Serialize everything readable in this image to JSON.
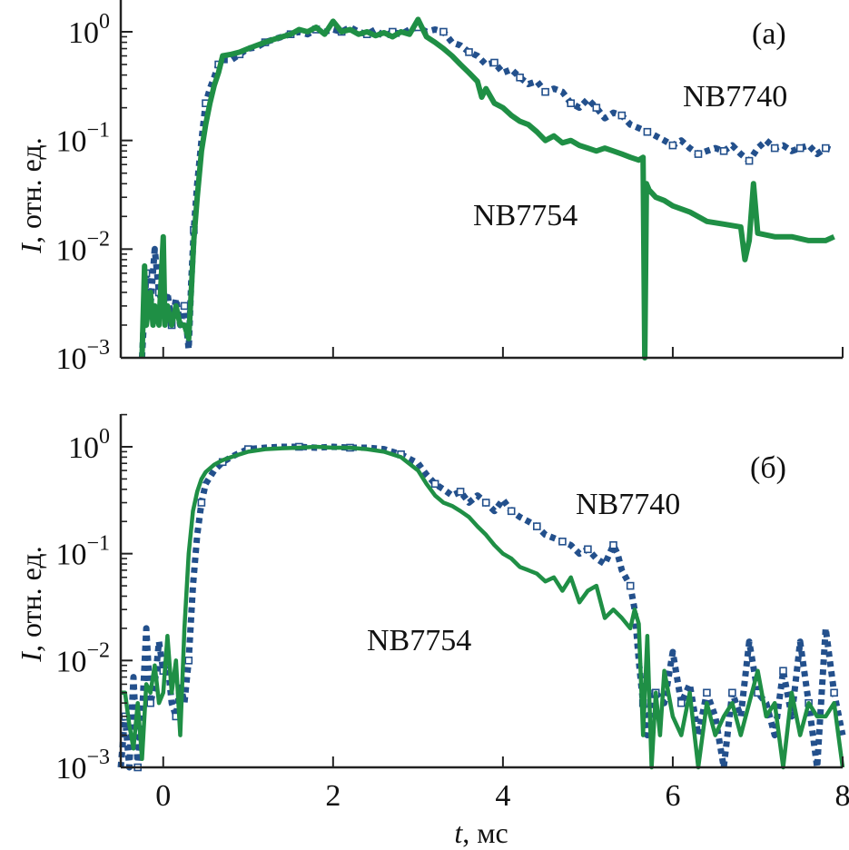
{
  "chart_data": [
    {
      "type": "line",
      "panel_label": "(a)",
      "title": "",
      "xlabel_italic": "t",
      "xlabel_rest": ", мс",
      "ylabel_italic": "I",
      "ylabel_rest": ", отн. ед.",
      "yscale": "log",
      "xlim": [
        -0.5,
        8
      ],
      "ylim": [
        0.001,
        2
      ],
      "x_ticks": [
        0,
        2,
        4,
        6,
        8
      ],
      "x_tick_labels_shown": false,
      "y_ticks": [
        {
          "value": 1,
          "base": "10",
          "exp": "0"
        },
        {
          "value": 0.1,
          "base": "10",
          "exp": "−1"
        },
        {
          "value": 0.01,
          "base": "10",
          "exp": "−2"
        },
        {
          "value": 0.001,
          "base": "10",
          "exp": "−3"
        }
      ],
      "grid": false,
      "series": [
        {
          "name": "NB7740",
          "style": "dotted-squares",
          "color": "#23508c",
          "label_position": "upper-right",
          "x": [
            -0.25,
            -0.2,
            -0.15,
            -0.1,
            -0.05,
            0,
            0.05,
            0.1,
            0.15,
            0.2,
            0.25,
            0.3,
            0.33,
            0.36,
            0.4,
            0.45,
            0.5,
            0.55,
            0.6,
            0.65,
            0.7,
            0.8,
            0.9,
            1.0,
            1.1,
            1.2,
            1.3,
            1.4,
            1.5,
            1.6,
            1.7,
            1.8,
            1.9,
            2.0,
            2.1,
            2.2,
            2.3,
            2.4,
            2.5,
            2.6,
            2.7,
            2.8,
            2.9,
            3.0,
            3.1,
            3.2,
            3.3,
            3.4,
            3.5,
            3.6,
            3.7,
            3.8,
            3.9,
            4.0,
            4.1,
            4.2,
            4.3,
            4.4,
            4.5,
            4.6,
            4.7,
            4.8,
            4.9,
            5.0,
            5.1,
            5.2,
            5.3,
            5.4,
            5.5,
            5.6,
            5.7,
            5.8,
            5.9,
            6.0,
            6.1,
            6.2,
            6.3,
            6.4,
            6.5,
            6.6,
            6.7,
            6.8,
            6.9,
            7.0,
            7.1,
            7.2,
            7.3,
            7.4,
            7.5,
            7.6,
            7.7,
            7.8,
            7.9
          ],
          "y": [
            0.001,
            0.006,
            0.003,
            0.01,
            0.004,
            0.003,
            0.004,
            0.002,
            0.0035,
            0.002,
            0.003,
            0.0012,
            0.005,
            0.015,
            0.04,
            0.1,
            0.22,
            0.3,
            0.38,
            0.5,
            0.55,
            0.55,
            0.62,
            0.7,
            0.72,
            0.8,
            0.85,
            0.9,
            0.95,
            1.0,
            0.95,
            1.05,
            1.0,
            1.05,
            1.0,
            1.1,
            1.0,
            0.95,
            1.05,
            0.9,
            1.0,
            0.95,
            1.05,
            1.1,
            1.0,
            1.05,
            1.0,
            0.8,
            0.75,
            0.65,
            0.6,
            0.5,
            0.52,
            0.42,
            0.45,
            0.38,
            0.33,
            0.35,
            0.28,
            0.3,
            0.28,
            0.22,
            0.2,
            0.24,
            0.2,
            0.16,
            0.18,
            0.17,
            0.14,
            0.13,
            0.12,
            0.11,
            0.1,
            0.09,
            0.1,
            0.085,
            0.075,
            0.08,
            0.085,
            0.08,
            0.09,
            0.075,
            0.065,
            0.085,
            0.1,
            0.085,
            0.09,
            0.08,
            0.085,
            0.09,
            0.075,
            0.085,
            0.08
          ]
        },
        {
          "name": "NB7754",
          "style": "solid",
          "color": "#1f8f45",
          "label_position": "center-right",
          "x": [
            -0.25,
            -0.22,
            -0.2,
            -0.15,
            -0.12,
            -0.1,
            -0.05,
            0,
            0.02,
            0.05,
            0.1,
            0.15,
            0.2,
            0.25,
            0.3,
            0.33,
            0.36,
            0.4,
            0.45,
            0.5,
            0.55,
            0.6,
            0.65,
            0.7,
            0.8,
            0.9,
            1.0,
            1.1,
            1.2,
            1.3,
            1.4,
            1.5,
            1.6,
            1.7,
            1.8,
            1.9,
            2.0,
            2.1,
            2.2,
            2.3,
            2.4,
            2.5,
            2.6,
            2.7,
            2.8,
            2.9,
            3.0,
            3.1,
            3.2,
            3.3,
            3.4,
            3.5,
            3.6,
            3.7,
            3.75,
            3.8,
            3.9,
            4.0,
            4.1,
            4.2,
            4.3,
            4.4,
            4.5,
            4.6,
            4.7,
            4.8,
            4.9,
            5.0,
            5.1,
            5.2,
            5.3,
            5.4,
            5.5,
            5.6,
            5.65,
            5.67,
            5.69,
            5.72,
            5.8,
            5.9,
            6.0,
            6.2,
            6.4,
            6.6,
            6.8,
            6.85,
            6.9,
            6.95,
            7.0,
            7.2,
            7.4,
            7.6,
            7.8,
            7.9
          ],
          "y": [
            0.001,
            0.007,
            0.002,
            0.004,
            0.002,
            0.003,
            0.002,
            0.013,
            0.002,
            0.003,
            0.002,
            0.003,
            0.002,
            0.002,
            0.0015,
            0.004,
            0.012,
            0.03,
            0.08,
            0.14,
            0.22,
            0.32,
            0.42,
            0.6,
            0.62,
            0.65,
            0.7,
            0.75,
            0.8,
            0.85,
            0.9,
            0.95,
            1.05,
            1.0,
            1.1,
            0.95,
            1.25,
            1.0,
            1.05,
            0.95,
            1.0,
            0.92,
            0.98,
            0.9,
            1.0,
            0.95,
            1.3,
            0.9,
            0.8,
            0.7,
            0.6,
            0.5,
            0.42,
            0.35,
            0.25,
            0.3,
            0.22,
            0.2,
            0.17,
            0.15,
            0.14,
            0.12,
            0.1,
            0.11,
            0.095,
            0.1,
            0.09,
            0.085,
            0.08,
            0.085,
            0.08,
            0.075,
            0.07,
            0.066,
            0.07,
            0.001,
            0.04,
            0.035,
            0.03,
            0.028,
            0.025,
            0.022,
            0.018,
            0.017,
            0.016,
            0.008,
            0.012,
            0.04,
            0.014,
            0.013,
            0.013,
            0.012,
            0.012,
            0.013
          ]
        }
      ]
    },
    {
      "type": "line",
      "panel_label": "(б)",
      "title": "",
      "xlabel_italic": "t",
      "xlabel_rest": ", мс",
      "ylabel_italic": "I",
      "ylabel_rest": ", отн. ед.",
      "yscale": "log",
      "xlim": [
        -0.5,
        8
      ],
      "ylim": [
        0.001,
        2
      ],
      "x_ticks": [
        0,
        2,
        4,
        6,
        8
      ],
      "x_tick_labels": [
        "0",
        "2",
        "4",
        "6",
        "8"
      ],
      "y_ticks": [
        {
          "value": 1,
          "base": "10",
          "exp": "0"
        },
        {
          "value": 0.1,
          "base": "10",
          "exp": "−1"
        },
        {
          "value": 0.01,
          "base": "10",
          "exp": "−2"
        },
        {
          "value": 0.001,
          "base": "10",
          "exp": "−3"
        }
      ],
      "grid": false,
      "series": [
        {
          "name": "NB7740",
          "style": "dotted-squares",
          "color": "#23508c",
          "label_position": "upper-right",
          "x": [
            -0.5,
            -0.45,
            -0.4,
            -0.35,
            -0.3,
            -0.25,
            -0.2,
            -0.15,
            -0.1,
            -0.05,
            0,
            0.05,
            0.1,
            0.15,
            0.2,
            0.25,
            0.3,
            0.35,
            0.4,
            0.45,
            0.5,
            0.6,
            0.7,
            0.8,
            0.9,
            1.0,
            1.2,
            1.4,
            1.6,
            1.8,
            2.0,
            2.2,
            2.4,
            2.6,
            2.8,
            3.0,
            3.1,
            3.2,
            3.3,
            3.4,
            3.5,
            3.6,
            3.7,
            3.8,
            3.9,
            4.0,
            4.1,
            4.2,
            4.3,
            4.4,
            4.5,
            4.6,
            4.7,
            4.8,
            4.9,
            5.0,
            5.1,
            5.2,
            5.3,
            5.35,
            5.4,
            5.5,
            5.55,
            5.6,
            5.65,
            5.7,
            5.75,
            5.8,
            5.9,
            6.0,
            6.1,
            6.2,
            6.3,
            6.4,
            6.5,
            6.6,
            6.7,
            6.8,
            6.9,
            7.0,
            7.1,
            7.2,
            7.3,
            7.4,
            7.5,
            7.6,
            7.7,
            7.8,
            7.9,
            8.0
          ],
          "y": [
            0.001,
            0.003,
            0.001,
            0.007,
            0.001,
            0.003,
            0.02,
            0.004,
            0.006,
            0.015,
            0.008,
            0.01,
            0.004,
            0.003,
            0.006,
            0.004,
            0.01,
            0.05,
            0.15,
            0.3,
            0.45,
            0.6,
            0.72,
            0.8,
            0.88,
            0.95,
            0.98,
            1.0,
            1.0,
            0.98,
            1.0,
            0.98,
            0.98,
            0.95,
            0.85,
            0.7,
            0.55,
            0.45,
            0.4,
            0.35,
            0.38,
            0.3,
            0.35,
            0.3,
            0.25,
            0.32,
            0.25,
            0.22,
            0.2,
            0.18,
            0.15,
            0.14,
            0.13,
            0.12,
            0.1,
            0.11,
            0.09,
            0.08,
            0.12,
            0.1,
            0.07,
            0.05,
            0.03,
            0.01,
            0.004,
            0.002,
            0.005,
            0.005,
            0.004,
            0.012,
            0.004,
            0.006,
            0.002,
            0.005,
            0.003,
            0.001,
            0.005,
            0.003,
            0.015,
            0.005,
            0.004,
            0.002,
            0.008,
            0.003,
            0.015,
            0.004,
            0.001,
            0.02,
            0.005,
            0.002
          ]
        },
        {
          "name": "NB7754",
          "style": "solid",
          "color": "#1f8f45",
          "label_position": "center",
          "x": [
            -0.5,
            -0.45,
            -0.4,
            -0.35,
            -0.3,
            -0.25,
            -0.2,
            -0.15,
            -0.1,
            -0.05,
            0,
            0.05,
            0.1,
            0.15,
            0.2,
            0.25,
            0.3,
            0.35,
            0.4,
            0.45,
            0.5,
            0.6,
            0.7,
            0.8,
            0.9,
            1.0,
            1.2,
            1.4,
            1.6,
            1.8,
            2.0,
            2.2,
            2.4,
            2.6,
            2.8,
            3.0,
            3.1,
            3.2,
            3.3,
            3.4,
            3.5,
            3.6,
            3.7,
            3.8,
            3.9,
            4.0,
            4.1,
            4.2,
            4.3,
            4.4,
            4.5,
            4.6,
            4.7,
            4.8,
            4.9,
            5.0,
            5.1,
            5.2,
            5.3,
            5.4,
            5.5,
            5.55,
            5.6,
            5.65,
            5.7,
            5.75,
            5.8,
            5.85,
            5.9,
            6.0,
            6.1,
            6.2,
            6.3,
            6.4,
            6.5,
            6.6,
            6.7,
            6.8,
            6.9,
            7.0,
            7.1,
            7.2,
            7.3,
            7.4,
            7.5,
            7.6,
            7.7,
            7.8,
            7.9,
            8.0
          ],
          "y": [
            0.005,
            0.005,
            0.0025,
            0.0015,
            0.004,
            0.0012,
            0.006,
            0.005,
            0.009,
            0.004,
            0.005,
            0.017,
            0.005,
            0.01,
            0.002,
            0.02,
            0.1,
            0.25,
            0.38,
            0.5,
            0.58,
            0.68,
            0.75,
            0.8,
            0.85,
            0.9,
            0.95,
            0.97,
            0.98,
            1.0,
            0.98,
            0.98,
            0.95,
            0.9,
            0.8,
            0.6,
            0.45,
            0.35,
            0.3,
            0.28,
            0.25,
            0.22,
            0.18,
            0.15,
            0.12,
            0.1,
            0.09,
            0.075,
            0.07,
            0.065,
            0.055,
            0.06,
            0.045,
            0.06,
            0.035,
            0.045,
            0.05,
            0.025,
            0.03,
            0.025,
            0.02,
            0.03,
            0.022,
            0.002,
            0.017,
            0.001,
            0.005,
            0.002,
            0.008,
            0.003,
            0.002,
            0.005,
            0.001,
            0.004,
            0.002,
            0.003,
            0.004,
            0.002,
            0.004,
            0.008,
            0.003,
            0.004,
            0.001,
            0.005,
            0.002,
            0.004,
            0.003,
            0.003,
            0.004,
            0.001
          ]
        }
      ]
    }
  ]
}
